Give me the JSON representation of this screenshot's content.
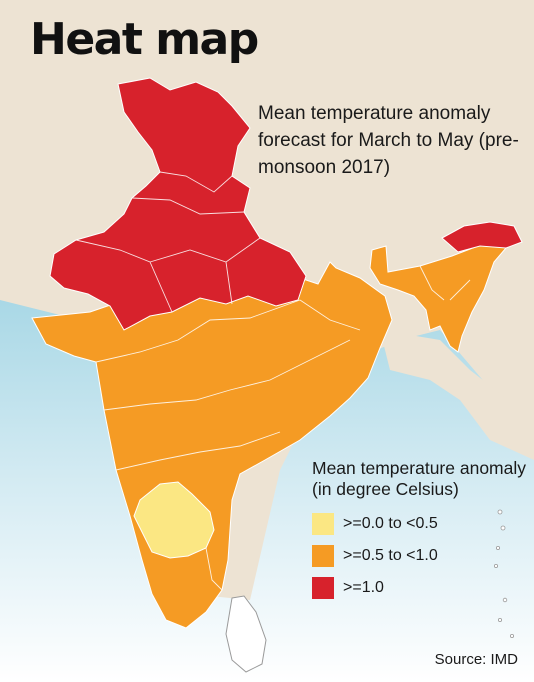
{
  "title": "Heat map",
  "subtitle": "Mean temperature anomaly forecast for March to May (pre-monsoon 2017)",
  "legend": {
    "title": "Mean temperature anomaly (in degree Celsius)",
    "items": [
      {
        "label": ">=0.0 to <0.5",
        "color": "#fbe783"
      },
      {
        "label": ">=0.5 to <1.0",
        "color": "#f59b24"
      },
      {
        "label": ">=1.0",
        "color": "#d7222c"
      }
    ]
  },
  "source": "Source: IMD",
  "colors": {
    "land_background": "#ede3d3",
    "sea": "#cfe7f1",
    "border": "#ffffff"
  }
}
